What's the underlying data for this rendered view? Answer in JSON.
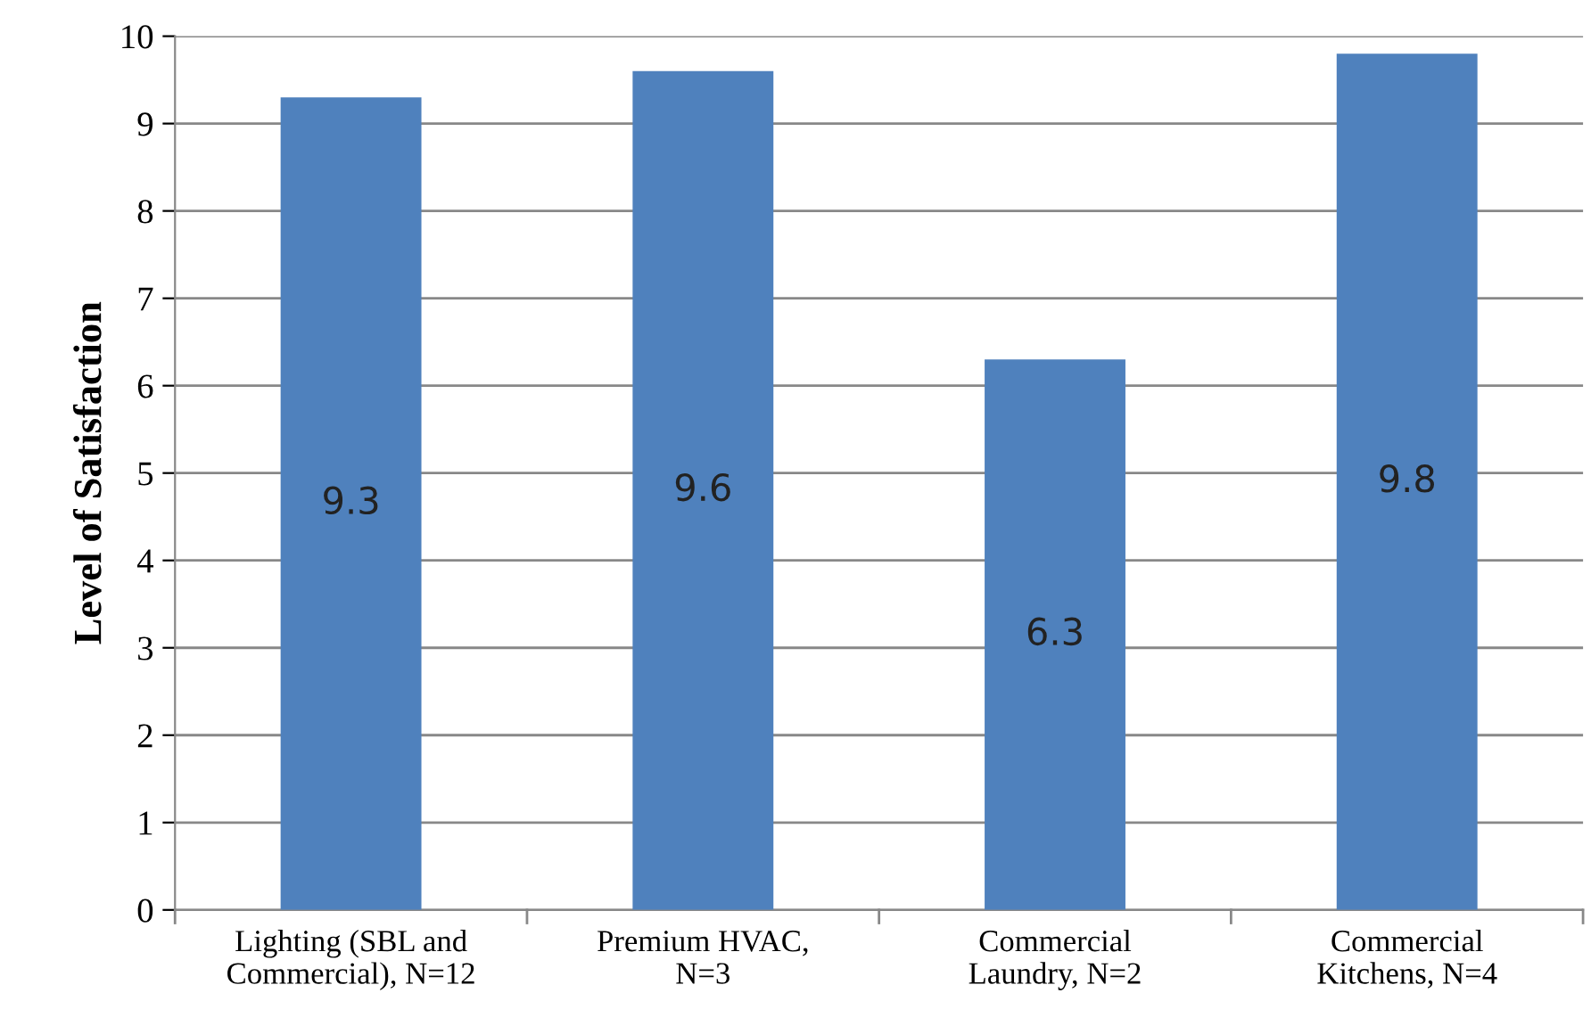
{
  "chart_data": {
    "type": "bar",
    "categories": [
      "Lighting (SBL and\nCommercial), N=12",
      "Premium HVAC,\nN=3",
      "Commercial\nLaundry, N=2",
      "Commercial\nKitchens, N=4"
    ],
    "values": [
      9.3,
      9.6,
      6.3,
      9.8
    ],
    "color": "#4f81bd",
    "ylabel": "Level of Satisfaction",
    "ylim": [
      0,
      10
    ],
    "yticks": [
      0,
      1,
      2,
      3,
      4,
      5,
      6,
      7,
      8,
      9,
      10
    ],
    "grid": "y",
    "data_labels": true
  }
}
